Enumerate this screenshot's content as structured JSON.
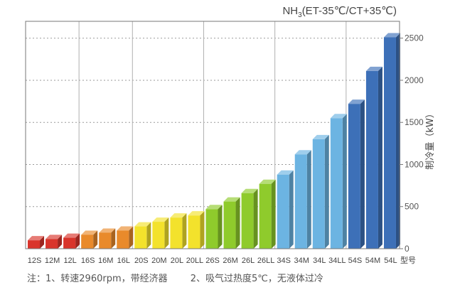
{
  "chart_data": {
    "type": "bar",
    "title_main": "NH",
    "title_sub": "3",
    "title_rest": "(ET-35℃/CT+35℃)",
    "ylabel": "制冷量（kW）",
    "xlabel": "型号",
    "ylim": [
      0,
      2700
    ],
    "yticks": [
      0,
      500,
      1000,
      1500,
      2000,
      2500
    ],
    "grid": true,
    "groups": [
      {
        "color": "#d9342b",
        "members": 3
      },
      {
        "color": "#e98a2b",
        "members": 3
      },
      {
        "color": "#f3e22c",
        "members": 4
      },
      {
        "color": "#8fcb2c",
        "members": 4
      },
      {
        "color": "#6cb4e2",
        "members": 4
      },
      {
        "color": "#3d70b8",
        "members": 3
      }
    ],
    "categories": [
      "12S",
      "12M",
      "12L",
      "16S",
      "16M",
      "16L",
      "20S",
      "20M",
      "20L",
      "20LL",
      "26S",
      "26M",
      "26L",
      "26LL",
      "34S",
      "34M",
      "34L",
      "34LL",
      "54S",
      "54M",
      "54L"
    ],
    "values": [
      100,
      115,
      130,
      165,
      190,
      215,
      265,
      320,
      370,
      395,
      470,
      560,
      660,
      770,
      880,
      1120,
      1300,
      1550,
      1720,
      2110,
      2510
    ]
  },
  "notes": {
    "note1": "注：1、转速2960rpm，带经济器",
    "note2": "2、吸气过热度5℃，无液体过冷"
  }
}
